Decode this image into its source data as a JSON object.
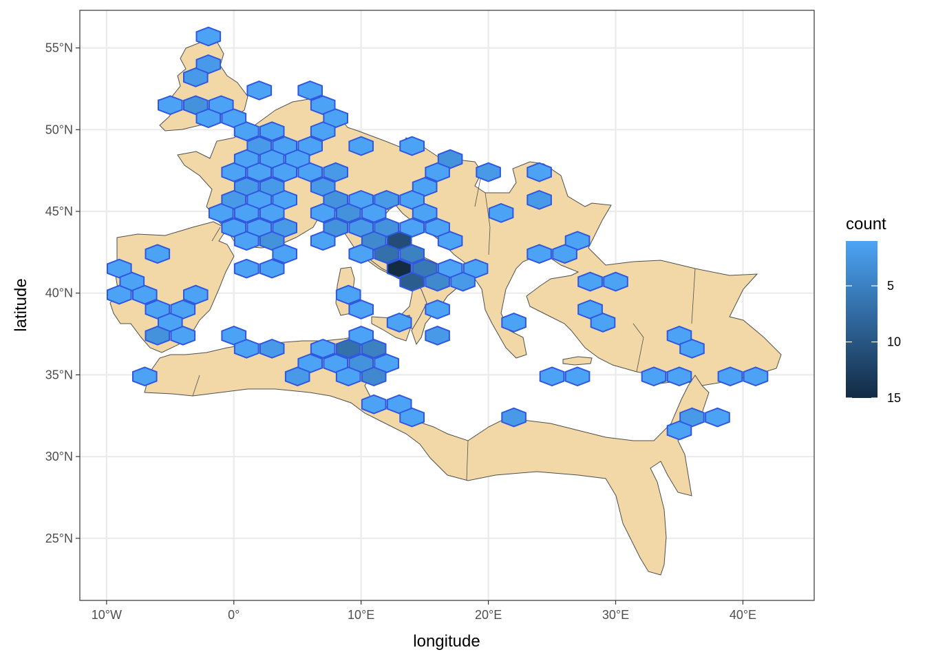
{
  "chart_data": {
    "type": "heatmap",
    "subtype": "hexbin map",
    "xlabel": "longitude",
    "ylabel": "latitude",
    "x_ticks": [
      {
        "value": -10,
        "label": "10°W"
      },
      {
        "value": 0,
        "label": "0°"
      },
      {
        "value": 10,
        "label": "10°E"
      },
      {
        "value": 20,
        "label": "20°E"
      },
      {
        "value": 30,
        "label": "30°E"
      },
      {
        "value": 40,
        "label": "40°E"
      }
    ],
    "y_ticks": [
      {
        "value": 25,
        "label": "25°N"
      },
      {
        "value": 30,
        "label": "30°N"
      },
      {
        "value": 35,
        "label": "35°N"
      },
      {
        "value": 40,
        "label": "40°N"
      },
      {
        "value": 45,
        "label": "45°N"
      },
      {
        "value": 50,
        "label": "50°N"
      },
      {
        "value": 55,
        "label": "55°N"
      }
    ],
    "xlim": [
      -12.1,
      45.6
    ],
    "ylim": [
      21.2,
      57.3
    ],
    "grid": true,
    "legend": {
      "title": "count",
      "position": "right",
      "breaks": [
        {
          "value": 5,
          "label": "5"
        },
        {
          "value": 10,
          "label": "10"
        },
        {
          "value": 15,
          "label": "15"
        }
      ],
      "range": [
        1,
        15
      ],
      "reversed": true,
      "low_color": "#4CA3F5",
      "high_color": "#132B43"
    },
    "colors": {
      "land_fill": "#F2D8A7",
      "land_stroke": "#4d4d4d",
      "hex_stroke": "#2F57E0",
      "grid": "#ebebeb",
      "panel_border": "#333333"
    },
    "hexbins": [
      {
        "lon": -2,
        "lat": 55.7,
        "count": 1
      },
      {
        "lon": -2,
        "lat": 54.0,
        "count": 2
      },
      {
        "lon": -3,
        "lat": 53.2,
        "count": 2
      },
      {
        "lon": 2,
        "lat": 52.4,
        "count": 1
      },
      {
        "lon": 6,
        "lat": 52.4,
        "count": 1
      },
      {
        "lon": -5,
        "lat": 51.5,
        "count": 1
      },
      {
        "lon": -3,
        "lat": 51.5,
        "count": 3
      },
      {
        "lon": -1,
        "lat": 51.5,
        "count": 1
      },
      {
        "lon": 7,
        "lat": 51.5,
        "count": 1
      },
      {
        "lon": -2,
        "lat": 50.7,
        "count": 1
      },
      {
        "lon": 0,
        "lat": 50.7,
        "count": 1
      },
      {
        "lon": 8,
        "lat": 50.7,
        "count": 1
      },
      {
        "lon": 1,
        "lat": 49.9,
        "count": 1
      },
      {
        "lon": 3,
        "lat": 49.9,
        "count": 1
      },
      {
        "lon": 7,
        "lat": 49.9,
        "count": 1
      },
      {
        "lon": 2,
        "lat": 49.0,
        "count": 2
      },
      {
        "lon": 4,
        "lat": 49.0,
        "count": 1
      },
      {
        "lon": 6,
        "lat": 49.0,
        "count": 1
      },
      {
        "lon": 10,
        "lat": 49.0,
        "count": 1
      },
      {
        "lon": 14,
        "lat": 49.0,
        "count": 1
      },
      {
        "lon": 1,
        "lat": 48.2,
        "count": 1
      },
      {
        "lon": 3,
        "lat": 48.2,
        "count": 1
      },
      {
        "lon": 5,
        "lat": 48.2,
        "count": 1
      },
      {
        "lon": 17,
        "lat": 48.2,
        "count": 3
      },
      {
        "lon": 0,
        "lat": 47.4,
        "count": 1
      },
      {
        "lon": 2,
        "lat": 47.4,
        "count": 1
      },
      {
        "lon": 4,
        "lat": 47.4,
        "count": 1
      },
      {
        "lon": 6,
        "lat": 47.4,
        "count": 1
      },
      {
        "lon": 8,
        "lat": 47.4,
        "count": 2
      },
      {
        "lon": 16,
        "lat": 47.4,
        "count": 1
      },
      {
        "lon": 20,
        "lat": 47.4,
        "count": 2
      },
      {
        "lon": 24,
        "lat": 47.4,
        "count": 1
      },
      {
        "lon": 1,
        "lat": 46.5,
        "count": 2
      },
      {
        "lon": 3,
        "lat": 46.5,
        "count": 2
      },
      {
        "lon": 7,
        "lat": 46.5,
        "count": 2
      },
      {
        "lon": 15,
        "lat": 46.5,
        "count": 1
      },
      {
        "lon": 0,
        "lat": 45.7,
        "count": 2
      },
      {
        "lon": 2,
        "lat": 45.7,
        "count": 1
      },
      {
        "lon": 4,
        "lat": 45.7,
        "count": 1
      },
      {
        "lon": 8,
        "lat": 45.7,
        "count": 3
      },
      {
        "lon": 10,
        "lat": 45.7,
        "count": 1
      },
      {
        "lon": 12,
        "lat": 45.7,
        "count": 2
      },
      {
        "lon": 14,
        "lat": 45.7,
        "count": 1
      },
      {
        "lon": 24,
        "lat": 45.7,
        "count": 2
      },
      {
        "lon": -1,
        "lat": 44.9,
        "count": 1
      },
      {
        "lon": 1,
        "lat": 44.9,
        "count": 1
      },
      {
        "lon": 3,
        "lat": 44.9,
        "count": 1
      },
      {
        "lon": 7,
        "lat": 44.9,
        "count": 1
      },
      {
        "lon": 9,
        "lat": 44.9,
        "count": 3
      },
      {
        "lon": 11,
        "lat": 44.9,
        "count": 1
      },
      {
        "lon": 15,
        "lat": 44.9,
        "count": 1
      },
      {
        "lon": 21,
        "lat": 44.9,
        "count": 1
      },
      {
        "lon": 0,
        "lat": 44.0,
        "count": 1
      },
      {
        "lon": 2,
        "lat": 44.0,
        "count": 1
      },
      {
        "lon": 4,
        "lat": 44.0,
        "count": 2
      },
      {
        "lon": 8,
        "lat": 44.0,
        "count": 3
      },
      {
        "lon": 10,
        "lat": 44.0,
        "count": 2
      },
      {
        "lon": 12,
        "lat": 44.0,
        "count": 3
      },
      {
        "lon": 14,
        "lat": 44.0,
        "count": 1
      },
      {
        "lon": 16,
        "lat": 44.0,
        "count": 1
      },
      {
        "lon": 1,
        "lat": 43.2,
        "count": 1
      },
      {
        "lon": 3,
        "lat": 43.2,
        "count": 3
      },
      {
        "lon": 7,
        "lat": 43.2,
        "count": 1
      },
      {
        "lon": 11,
        "lat": 43.2,
        "count": 4
      },
      {
        "lon": 13,
        "lat": 43.2,
        "count": 11
      },
      {
        "lon": 17,
        "lat": 43.2,
        "count": 1
      },
      {
        "lon": 27,
        "lat": 43.2,
        "count": 1
      },
      {
        "lon": 4,
        "lat": 42.4,
        "count": 1
      },
      {
        "lon": -6,
        "lat": 42.4,
        "count": 1
      },
      {
        "lon": 10,
        "lat": 42.4,
        "count": 1
      },
      {
        "lon": 12,
        "lat": 42.4,
        "count": 7
      },
      {
        "lon": 14,
        "lat": 42.4,
        "count": 5
      },
      {
        "lon": 24,
        "lat": 42.4,
        "count": 1
      },
      {
        "lon": 26,
        "lat": 42.4,
        "count": 1
      },
      {
        "lon": -9,
        "lat": 41.5,
        "count": 1
      },
      {
        "lon": 1,
        "lat": 41.5,
        "count": 1
      },
      {
        "lon": 3,
        "lat": 41.5,
        "count": 1
      },
      {
        "lon": 13,
        "lat": 41.5,
        "count": 15
      },
      {
        "lon": 15,
        "lat": 41.5,
        "count": 6
      },
      {
        "lon": 17,
        "lat": 41.5,
        "count": 1
      },
      {
        "lon": 19,
        "lat": 41.5,
        "count": 1
      },
      {
        "lon": -8,
        "lat": 40.7,
        "count": 1
      },
      {
        "lon": 14,
        "lat": 40.7,
        "count": 9
      },
      {
        "lon": 16,
        "lat": 40.7,
        "count": 4
      },
      {
        "lon": 18,
        "lat": 40.7,
        "count": 2
      },
      {
        "lon": 28,
        "lat": 40.7,
        "count": 1
      },
      {
        "lon": 30,
        "lat": 40.7,
        "count": 1
      },
      {
        "lon": -9,
        "lat": 39.9,
        "count": 1
      },
      {
        "lon": -7,
        "lat": 39.9,
        "count": 1
      },
      {
        "lon": -3,
        "lat": 39.9,
        "count": 1
      },
      {
        "lon": 9,
        "lat": 39.9,
        "count": 1
      },
      {
        "lon": -6,
        "lat": 39.0,
        "count": 1
      },
      {
        "lon": -4,
        "lat": 39.0,
        "count": 1
      },
      {
        "lon": 10,
        "lat": 39.0,
        "count": 1
      },
      {
        "lon": 16,
        "lat": 39.0,
        "count": 1
      },
      {
        "lon": 28,
        "lat": 39.0,
        "count": 1
      },
      {
        "lon": -5,
        "lat": 38.2,
        "count": 1
      },
      {
        "lon": 13,
        "lat": 38.2,
        "count": 1
      },
      {
        "lon": 22,
        "lat": 38.2,
        "count": 1
      },
      {
        "lon": 29,
        "lat": 38.2,
        "count": 1
      },
      {
        "lon": -6,
        "lat": 37.4,
        "count": 3
      },
      {
        "lon": -4,
        "lat": 37.4,
        "count": 1
      },
      {
        "lon": 0,
        "lat": 37.4,
        "count": 1
      },
      {
        "lon": 10,
        "lat": 37.4,
        "count": 1
      },
      {
        "lon": 16,
        "lat": 37.4,
        "count": 2
      },
      {
        "lon": 35,
        "lat": 37.4,
        "count": 1
      },
      {
        "lon": 1,
        "lat": 36.6,
        "count": 1
      },
      {
        "lon": 3,
        "lat": 36.6,
        "count": 2
      },
      {
        "lon": 7,
        "lat": 36.6,
        "count": 1
      },
      {
        "lon": 9,
        "lat": 36.6,
        "count": 7
      },
      {
        "lon": 11,
        "lat": 36.6,
        "count": 5
      },
      {
        "lon": 36,
        "lat": 36.6,
        "count": 1
      },
      {
        "lon": 6,
        "lat": 35.7,
        "count": 1
      },
      {
        "lon": 8,
        "lat": 35.7,
        "count": 1
      },
      {
        "lon": 10,
        "lat": 35.7,
        "count": 3
      },
      {
        "lon": 12,
        "lat": 35.7,
        "count": 1
      },
      {
        "lon": -7,
        "lat": 34.9,
        "count": 1
      },
      {
        "lon": 5,
        "lat": 34.9,
        "count": 2
      },
      {
        "lon": 9,
        "lat": 34.9,
        "count": 1
      },
      {
        "lon": 11,
        "lat": 34.9,
        "count": 4
      },
      {
        "lon": 25,
        "lat": 34.9,
        "count": 1
      },
      {
        "lon": 27,
        "lat": 34.9,
        "count": 1
      },
      {
        "lon": 33,
        "lat": 34.9,
        "count": 1
      },
      {
        "lon": 35,
        "lat": 34.9,
        "count": 1
      },
      {
        "lon": 39,
        "lat": 34.9,
        "count": 1
      },
      {
        "lon": 41,
        "lat": 34.9,
        "count": 1
      },
      {
        "lon": 11,
        "lat": 33.2,
        "count": 1
      },
      {
        "lon": 13,
        "lat": 33.2,
        "count": 1
      },
      {
        "lon": 14,
        "lat": 32.4,
        "count": 1
      },
      {
        "lon": 22,
        "lat": 32.4,
        "count": 2
      },
      {
        "lon": 36,
        "lat": 32.4,
        "count": 2
      },
      {
        "lon": 38,
        "lat": 32.4,
        "count": 1
      },
      {
        "lon": 35,
        "lat": 31.6,
        "count": 1
      }
    ]
  }
}
